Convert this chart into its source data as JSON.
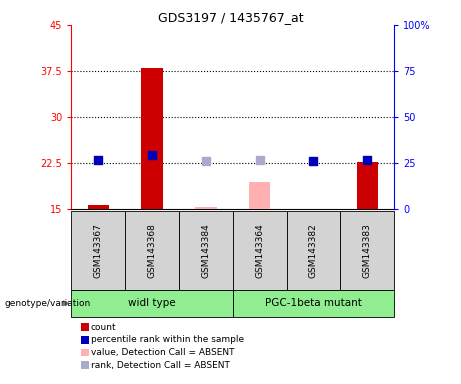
{
  "title": "GDS3197 / 1435767_at",
  "samples": [
    "GSM143367",
    "GSM143368",
    "GSM143384",
    "GSM143364",
    "GSM143382",
    "GSM143383"
  ],
  "count_values": [
    15.7,
    38.0,
    null,
    null,
    null,
    22.7
  ],
  "count_absent_values": [
    null,
    null,
    15.3,
    19.5,
    14.8,
    null
  ],
  "rank_values": [
    27.0,
    29.5,
    null,
    null,
    26.2,
    27.0
  ],
  "rank_absent_values": [
    null,
    null,
    26.2,
    27.0,
    null,
    null
  ],
  "ylim_left": [
    15,
    45
  ],
  "ylim_right": [
    0,
    100
  ],
  "yticks_left": [
    15,
    22.5,
    30,
    37.5,
    45
  ],
  "yticks_right": [
    0,
    25,
    50,
    75,
    100
  ],
  "ytick_labels_left": [
    "15",
    "22.5",
    "30",
    "37.5",
    "45"
  ],
  "ytick_labels_right": [
    "0",
    "25",
    "50",
    "75",
    "100%"
  ],
  "hlines": [
    22.5,
    30,
    37.5
  ],
  "bar_color_red": "#cc0000",
  "bar_color_pink": "#ffb0b0",
  "dot_color_blue": "#0000bb",
  "dot_color_lightblue": "#aaaacc",
  "group1_label": "widl type",
  "group2_label": "PGC-1beta mutant",
  "group1_indices": [
    0,
    1,
    2
  ],
  "group2_indices": [
    3,
    4,
    5
  ],
  "genotype_label": "genotype/variation",
  "legend_entries": [
    {
      "label": "count",
      "color": "#cc0000"
    },
    {
      "label": "percentile rank within the sample",
      "color": "#0000bb"
    },
    {
      "label": "value, Detection Call = ABSENT",
      "color": "#ffb0b0"
    },
    {
      "label": "rank, Detection Call = ABSENT",
      "color": "#aaaacc"
    }
  ],
  "bar_width": 0.4,
  "dot_size": 40,
  "group_bg_color": "#d3d3d3",
  "green_bg_color": "#90ee90"
}
